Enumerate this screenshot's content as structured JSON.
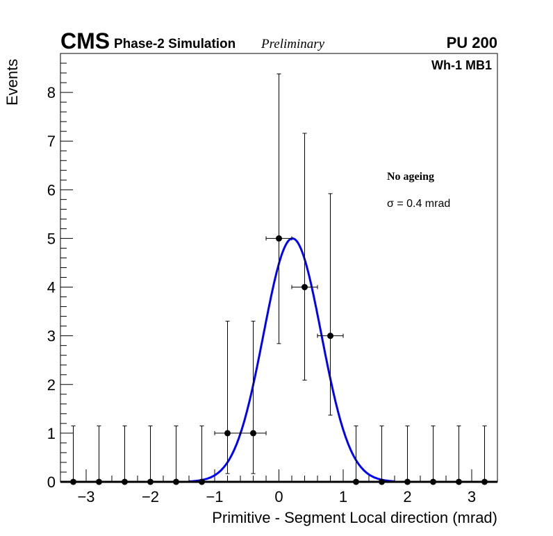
{
  "chart_data": {
    "type": "scatter",
    "title_main": "CMS",
    "title_sub": "Phase-2 Simulation",
    "title_status": "Preliminary",
    "pileup": "PU 200",
    "region": "Wh-1 MB1",
    "xlabel": "Primitive - Segment Local direction (mrad)",
    "ylabel": "Events",
    "xlim": [
      -3.4,
      3.4
    ],
    "ylim": [
      0,
      8.8
    ],
    "xticks": [
      -3,
      -2,
      -1,
      0,
      1,
      2,
      3
    ],
    "xtick_labels": [
      "−3",
      "−2",
      "−1",
      "0",
      "1",
      "2",
      "3"
    ],
    "yticks": [
      0,
      1,
      2,
      3,
      4,
      5,
      6,
      7,
      8
    ],
    "ytick_labels": [
      "0",
      "1",
      "2",
      "3",
      "4",
      "5",
      "6",
      "7",
      "8"
    ],
    "bin_width": 0.4,
    "x": [
      -3.2,
      -2.8,
      -2.4,
      -2.0,
      -1.6,
      -1.2,
      -0.8,
      -0.4,
      0.0,
      0.4,
      0.8,
      1.2,
      1.6,
      2.0,
      2.4,
      2.8,
      3.2
    ],
    "y": [
      0,
      0,
      0,
      0,
      0,
      0,
      1,
      1,
      5,
      4,
      3,
      0,
      0,
      0,
      0,
      0,
      0
    ],
    "err_low": [
      0,
      0,
      0,
      0,
      0,
      0,
      0.83,
      0.83,
      2.16,
      1.91,
      1.63,
      0,
      0,
      0,
      0,
      0,
      0
    ],
    "err_high": [
      1.15,
      1.15,
      1.15,
      1.15,
      1.15,
      1.15,
      2.3,
      2.3,
      3.38,
      3.16,
      2.92,
      1.15,
      1.15,
      1.15,
      1.15,
      1.15,
      1.15
    ],
    "fit": {
      "type": "gaussian",
      "amplitude": 5.0,
      "mean": 0.21,
      "sigma": 0.45,
      "range": [
        -1.4,
        1.8
      ],
      "color": "#0000ff"
    },
    "annotation_title": "No ageing",
    "annotation_sigma": "σ = 0.4 mrad"
  }
}
